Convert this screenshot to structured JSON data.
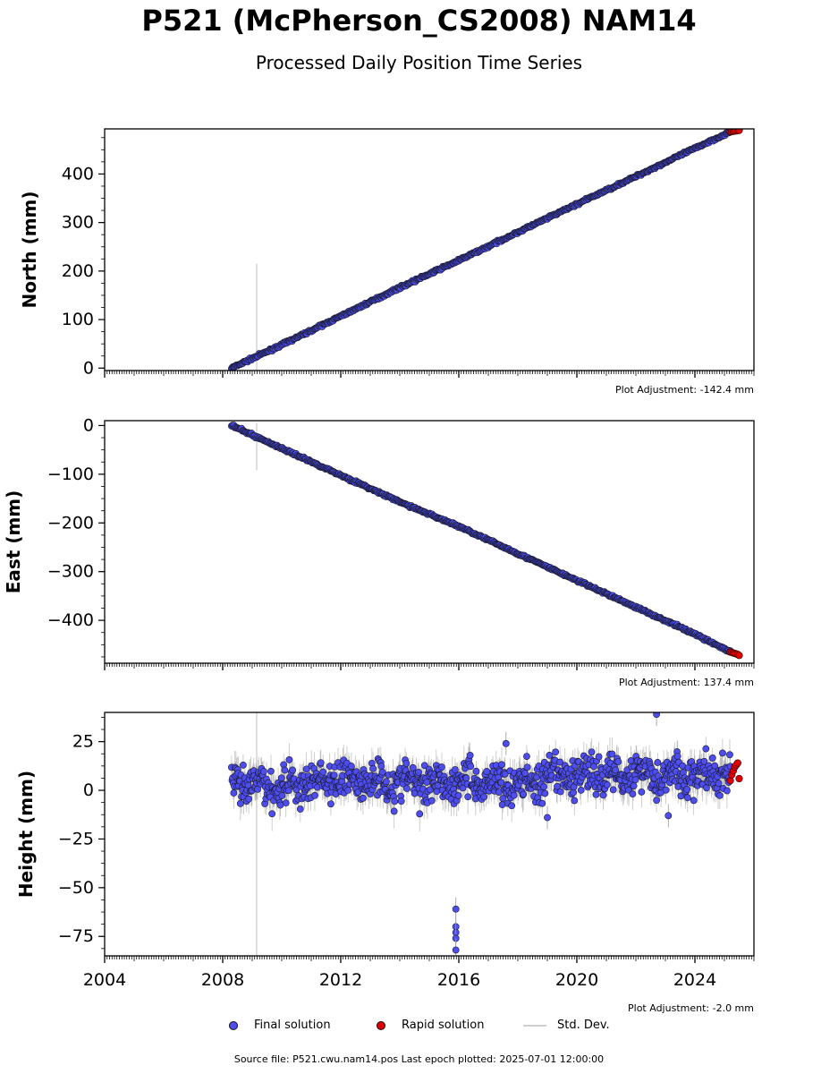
{
  "page": {
    "title": "P521 (McPherson_CS2008) NAM14",
    "subtitle": "Processed Daily Position Time Series",
    "source": "Source file: P521.cwu.nam14.pos  Last epoch plotted: 2025-07-01 12:00:00"
  },
  "legend": {
    "final_label": "Final solution",
    "rapid_label": "Rapid solution",
    "std_label": "Std. Dev."
  },
  "colors": {
    "final": "#4d4df0",
    "rapid": "#e00000",
    "stddev": "#c8c8c8",
    "marker_edge": "#1a1a2e"
  },
  "chart_data": [
    {
      "type": "scatter",
      "ylabel": "North (mm)",
      "adjustment": "Plot Adjustment: -142.4 mm",
      "xlim": [
        2004,
        2026
      ],
      "ylim": [
        -5,
        493
      ],
      "yticks": [
        0,
        100,
        200,
        300,
        400
      ],
      "ytick_labels": [
        "0",
        "100",
        "200",
        "300",
        "400"
      ],
      "series": [
        {
          "kind": "final",
          "x": [
            2008.3,
            2010,
            2012,
            2014,
            2016,
            2018,
            2020,
            2022,
            2024,
            2025.2
          ],
          "y": [
            0,
            48,
            107,
            166,
            222,
            280,
            338,
            395,
            453,
            487
          ]
        },
        {
          "kind": "rapid",
          "x": [
            2025.2,
            2025.25,
            2025.3,
            2025.35,
            2025.4,
            2025.45,
            2025.5
          ],
          "y": [
            487,
            487.5,
            488,
            488.5,
            489,
            489.5,
            490
          ]
        }
      ],
      "std_spike": {
        "x": 2009.15,
        "y_low": -5,
        "y_high": 215
      }
    },
    {
      "type": "scatter",
      "ylabel": "East (mm)",
      "adjustment": "Plot Adjustment: 137.4 mm",
      "xlim": [
        2004,
        2026
      ],
      "ylim": [
        -488,
        10
      ],
      "yticks": [
        0,
        -100,
        -200,
        -300,
        -400
      ],
      "ytick_labels": [
        "0",
        "−100",
        "−200",
        "−300",
        "−400"
      ],
      "series": [
        {
          "kind": "final",
          "x": [
            2008.3,
            2010,
            2012,
            2014,
            2016,
            2018,
            2020,
            2022,
            2024,
            2025.2
          ],
          "y": [
            0,
            -47,
            -102,
            -157,
            -207,
            -263,
            -318,
            -373,
            -428,
            -465
          ]
        },
        {
          "kind": "rapid",
          "x": [
            2025.2,
            2025.25,
            2025.3,
            2025.35,
            2025.4,
            2025.45,
            2025.5
          ],
          "y": [
            -465,
            -466,
            -467,
            -468,
            -469,
            -470,
            -472
          ]
        }
      ],
      "std_spike": {
        "x": 2009.15,
        "y_low": -92,
        "y_high": 5
      }
    },
    {
      "type": "scatter",
      "ylabel": "Height (mm)",
      "adjustment": "Plot Adjustment: -2.0 mm",
      "xlim": [
        2004,
        2026
      ],
      "ylim": [
        -85,
        40
      ],
      "yticks": [
        25,
        0,
        -25,
        -50,
        -75
      ],
      "ytick_labels": [
        "25",
        "0",
        "−25",
        "−50",
        "−75"
      ],
      "xticks": [
        2004,
        2008,
        2012,
        2016,
        2020,
        2024
      ],
      "xtick_labels": [
        "2004",
        "2008",
        "2012",
        "2016",
        "2020",
        "2024"
      ],
      "series": [
        {
          "kind": "final",
          "x": [
            2008.3,
            2010,
            2012,
            2014,
            2016,
            2018,
            2020,
            2022,
            2024,
            2025.2
          ],
          "y": [
            3,
            2,
            6,
            4,
            5,
            3,
            8,
            9,
            7,
            8
          ]
        },
        {
          "kind": "rapid",
          "x": [
            2025.2,
            2025.25,
            2025.3,
            2025.35,
            2025.4,
            2025.45,
            2025.5
          ],
          "y": [
            5,
            8,
            10,
            12,
            13,
            14,
            6
          ]
        },
        {
          "kind": "outlier",
          "x": [
            2015.9,
            2015.9,
            2015.9,
            2015.9,
            2015.9,
            2019.0,
            2022.7,
            2023.1,
            2017.6
          ],
          "y": [
            -61,
            -70,
            -73,
            -76,
            -82,
            -14,
            39,
            -13,
            24
          ]
        }
      ],
      "std_spike": {
        "x": 2009.15,
        "y_low": -85,
        "y_high": 40
      }
    }
  ]
}
